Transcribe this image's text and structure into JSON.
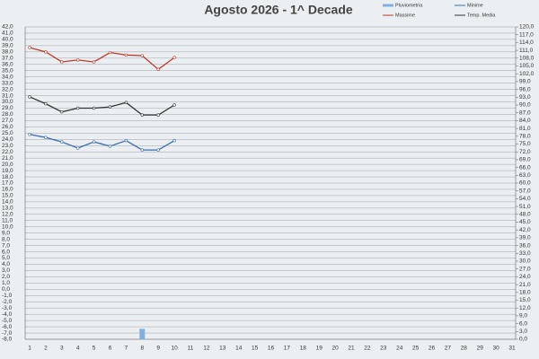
{
  "chart_data": {
    "type": "line",
    "title": "Agosto 2026 - 1^ Decade",
    "x": [
      1,
      2,
      3,
      4,
      5,
      6,
      7,
      8,
      9,
      10,
      11,
      12,
      13,
      14,
      15,
      16,
      17,
      18,
      19,
      20,
      21,
      22,
      23,
      24,
      25,
      26,
      27,
      28,
      29,
      30,
      31
    ],
    "xlim": [
      1,
      31
    ],
    "series": [
      {
        "name": "Pluviometria",
        "color": "#7fb0e0",
        "type": "bar",
        "axis": "y2",
        "values": [
          null,
          null,
          null,
          null,
          null,
          null,
          null,
          4,
          null,
          null,
          null,
          null,
          null,
          null,
          null,
          null,
          null,
          null,
          null,
          null,
          null,
          null,
          null,
          null,
          null,
          null,
          null,
          null,
          null,
          null,
          null
        ]
      },
      {
        "name": "Minime",
        "color": "#3a6fb0",
        "values": [
          24.8,
          24.3,
          23.6,
          22.6,
          23.6,
          22.9,
          23.8,
          22.3,
          22.3,
          23.8,
          null,
          null,
          null,
          null,
          null,
          null,
          null,
          null,
          null,
          null,
          null,
          null,
          null,
          null,
          null,
          null,
          null,
          null,
          null,
          null,
          null
        ]
      },
      {
        "name": "Massime",
        "color": "#c0392b",
        "values": [
          38.7,
          38.0,
          36.4,
          36.7,
          36.4,
          37.9,
          37.5,
          37.4,
          35.2,
          37.1,
          null,
          null,
          null,
          null,
          null,
          null,
          null,
          null,
          null,
          null,
          null,
          null,
          null,
          null,
          null,
          null,
          null,
          null,
          null,
          null,
          null
        ]
      },
      {
        "name": "Temp. Media",
        "color": "#333333",
        "values": [
          30.8,
          29.7,
          28.4,
          29.0,
          29.0,
          29.2,
          29.9,
          27.9,
          27.9,
          29.5,
          null,
          null,
          null,
          null,
          null,
          null,
          null,
          null,
          null,
          null,
          null,
          null,
          null,
          null,
          null,
          null,
          null,
          null,
          null,
          null,
          null
        ]
      }
    ],
    "ylim": [
      -8,
      42
    ],
    "yticks": [
      {
        "value": -8,
        "label": "-8,0"
      },
      {
        "value": -7,
        "label": "-7,0"
      },
      {
        "value": -6,
        "label": "-6,0"
      },
      {
        "value": -5,
        "label": "-5,0"
      },
      {
        "value": -4,
        "label": "-4,0"
      },
      {
        "value": -3,
        "label": "-3,0"
      },
      {
        "value": -2,
        "label": "-2,0"
      },
      {
        "value": -1,
        "label": "-1,0"
      },
      {
        "value": 0,
        "label": "0,0"
      },
      {
        "value": 1,
        "label": "1,0"
      },
      {
        "value": 2,
        "label": "2,0"
      },
      {
        "value": 3,
        "label": "3,0"
      },
      {
        "value": 4,
        "label": "4,0"
      },
      {
        "value": 5,
        "label": "5,0"
      },
      {
        "value": 6,
        "label": "6,0"
      },
      {
        "value": 7,
        "label": "7,0"
      },
      {
        "value": 8,
        "label": "8,0"
      },
      {
        "value": 9,
        "label": "9,0"
      },
      {
        "value": 10,
        "label": "10,0"
      },
      {
        "value": 11,
        "label": "11,0"
      },
      {
        "value": 12,
        "label": "12,0"
      },
      {
        "value": 13,
        "label": "13,0"
      },
      {
        "value": 14,
        "label": "14,0"
      },
      {
        "value": 15,
        "label": "15,0"
      },
      {
        "value": 16,
        "label": "16,0"
      },
      {
        "value": 17,
        "label": "17,0"
      },
      {
        "value": 18,
        "label": "18,0"
      },
      {
        "value": 19,
        "label": "19,0"
      },
      {
        "value": 20,
        "label": "20,0"
      },
      {
        "value": 21,
        "label": "21,0"
      },
      {
        "value": 22,
        "label": "22,0"
      },
      {
        "value": 23,
        "label": "23,0"
      },
      {
        "value": 24,
        "label": "24,0"
      },
      {
        "value": 25,
        "label": "25,0"
      },
      {
        "value": 26,
        "label": "26,0"
      },
      {
        "value": 27,
        "label": "27,0"
      },
      {
        "value": 28,
        "label": "28,0"
      },
      {
        "value": 29,
        "label": "29,0"
      },
      {
        "value": 30,
        "label": "30,0"
      },
      {
        "value": 31,
        "label": "31,0"
      },
      {
        "value": 32,
        "label": "32,0"
      },
      {
        "value": 33,
        "label": "33,0"
      },
      {
        "value": 34,
        "label": "34,0"
      },
      {
        "value": 35,
        "label": "35,0"
      },
      {
        "value": 36,
        "label": "36,0"
      },
      {
        "value": 37,
        "label": "37,0"
      },
      {
        "value": 38,
        "label": "38,0"
      },
      {
        "value": 39,
        "label": "39,0"
      },
      {
        "value": 40,
        "label": "40,0"
      },
      {
        "value": 41,
        "label": "41,0"
      },
      {
        "value": 42,
        "label": "42,0"
      }
    ],
    "y2lim": [
      0,
      120
    ],
    "y2ticks": [
      {
        "value": 0,
        "label": "0,0"
      },
      {
        "value": 3,
        "label": "3,0"
      },
      {
        "value": 6,
        "label": "6,0"
      },
      {
        "value": 9,
        "label": "9,0"
      },
      {
        "value": 12,
        "label": "12,0"
      },
      {
        "value": 15,
        "label": "15,0"
      },
      {
        "value": 18,
        "label": "18,0"
      },
      {
        "value": 21,
        "label": "21,0"
      },
      {
        "value": 24,
        "label": "24,0"
      },
      {
        "value": 27,
        "label": "27,0"
      },
      {
        "value": 30,
        "label": "30,0"
      },
      {
        "value": 33,
        "label": "33,0"
      },
      {
        "value": 36,
        "label": "36,0"
      },
      {
        "value": 39,
        "label": "39,0"
      },
      {
        "value": 42,
        "label": "42,0"
      },
      {
        "value": 45,
        "label": "45,0"
      },
      {
        "value": 48,
        "label": "48,0"
      },
      {
        "value": 51,
        "label": "51,0"
      },
      {
        "value": 54,
        "label": "54,0"
      },
      {
        "value": 57,
        "label": "57,0"
      },
      {
        "value": 60,
        "label": "60,0"
      },
      {
        "value": 63,
        "label": "63,0"
      },
      {
        "value": 66,
        "label": "66,0"
      },
      {
        "value": 69,
        "label": "69,0"
      },
      {
        "value": 72,
        "label": "72,0"
      },
      {
        "value": 75,
        "label": "75,0"
      },
      {
        "value": 78,
        "label": "78,0"
      },
      {
        "value": 81,
        "label": "81,0"
      },
      {
        "value": 84,
        "label": "84,0"
      },
      {
        "value": 87,
        "label": "87,0"
      },
      {
        "value": 90,
        "label": "90,0"
      },
      {
        "value": 93,
        "label": "93,0"
      },
      {
        "value": 96,
        "label": "96,0"
      },
      {
        "value": 99,
        "label": "99,0"
      },
      {
        "value": 102,
        "label": "102,0"
      },
      {
        "value": 105,
        "label": "105,0"
      },
      {
        "value": 108,
        "label": "108,0"
      },
      {
        "value": 111,
        "label": "111,0"
      },
      {
        "value": 114,
        "label": "114,0"
      },
      {
        "value": 117,
        "label": "117,0"
      },
      {
        "value": 120,
        "label": "120,0"
      }
    ],
    "grid": true
  }
}
